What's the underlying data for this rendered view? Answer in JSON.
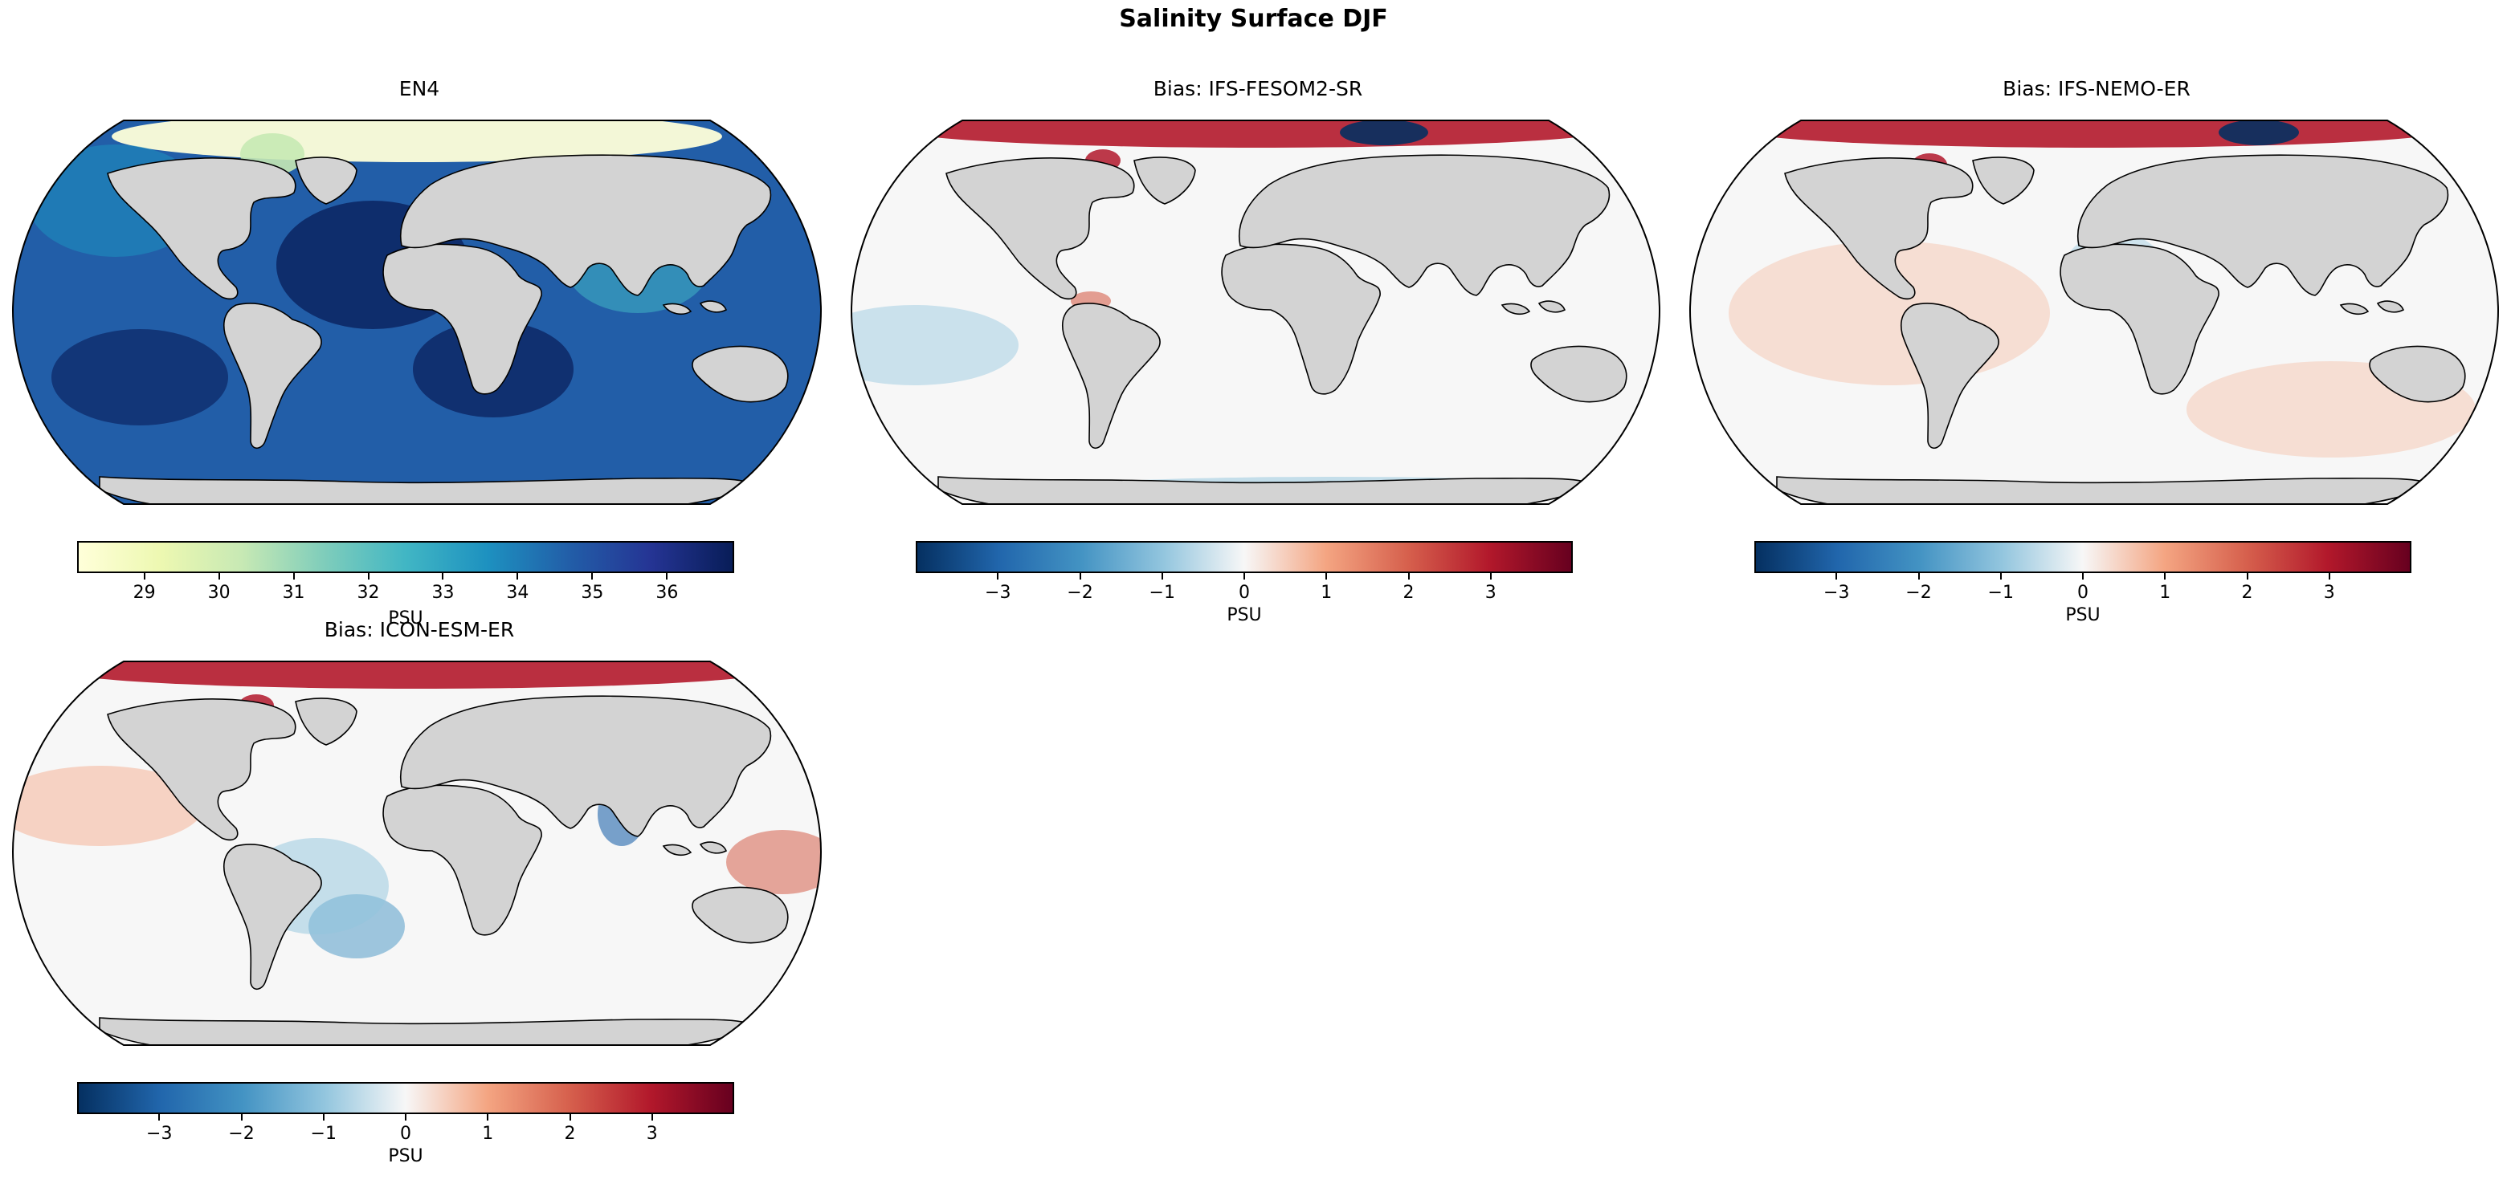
{
  "figure": {
    "title": "Salinity Surface DJF",
    "colors": {
      "land": "#d3d3d3",
      "coastline": "#000000",
      "bias_negative": "#053061",
      "bias_zero": "#f7f7f7",
      "bias_positive": "#67001f",
      "salinity_low": "#ffffd9",
      "salinity_mid": "#41b6c4",
      "salinity_high": "#081d58"
    },
    "panels": [
      {
        "title": "EN4",
        "colormap": "YlGnBu",
        "colorbar": {
          "label": "PSU",
          "min": 28.1,
          "max": 36.9,
          "ticks": [
            "29",
            "30",
            "31",
            "32",
            "33",
            "34",
            "35",
            "36"
          ],
          "tick_values": [
            29,
            30,
            31,
            32,
            33,
            34,
            35,
            36
          ]
        }
      },
      {
        "title": "Bias: IFS-FESOM2-SR",
        "colormap": "RdBu_r",
        "colorbar": {
          "label": "PSU",
          "min": -4,
          "max": 4,
          "ticks": [
            "−3",
            "−2",
            "−1",
            "0",
            "1",
            "2",
            "3"
          ],
          "tick_values": [
            -3,
            -2,
            -1,
            0,
            1,
            2,
            3
          ]
        }
      },
      {
        "title": "Bias: IFS-NEMO-ER",
        "colormap": "RdBu_r",
        "colorbar": {
          "label": "PSU",
          "min": -4,
          "max": 4,
          "ticks": [
            "−3",
            "−2",
            "−1",
            "0",
            "1",
            "2",
            "3"
          ],
          "tick_values": [
            -3,
            -2,
            -1,
            0,
            1,
            2,
            3
          ]
        }
      },
      {
        "title": "Bias: ICON-ESM-ER",
        "colormap": "RdBu_r",
        "colorbar": {
          "label": "PSU",
          "min": -4,
          "max": 4,
          "ticks": [
            "−3",
            "−2",
            "−1",
            "0",
            "1",
            "2",
            "3"
          ],
          "tick_values": [
            -3,
            -2,
            -1,
            0,
            1,
            2,
            3
          ]
        }
      }
    ]
  }
}
